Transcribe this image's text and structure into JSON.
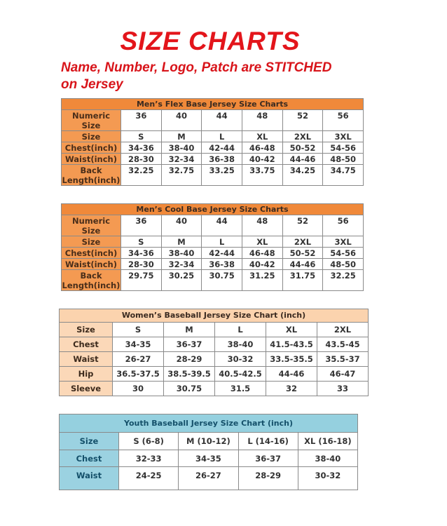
{
  "title": "SIZE CHARTS",
  "subtitle_line1": "Name, Number, Logo, Patch are STITCHED",
  "subtitle_line2": "on Jersey",
  "colors": {
    "title_red": "#e3151b",
    "men_header": "#f0893a",
    "women_header": "#fbd3ae",
    "youth_header": "#95d0df"
  },
  "tables": [
    {
      "caption": "Men’s Flex Base Jersey Size Charts",
      "rows": [
        [
          "Numeric Size",
          "36",
          "40",
          "44",
          "48",
          "52",
          "56"
        ],
        [
          "Size",
          "S",
          "M",
          "L",
          "XL",
          "2XL",
          "3XL"
        ],
        [
          "Chest(inch)",
          "34-36",
          "38-40",
          "42-44",
          "46-48",
          "50-52",
          "54-56"
        ],
        [
          "Waist(inch)",
          "28-30",
          "32-34",
          "36-38",
          "40-42",
          "44-46",
          "48-50"
        ],
        [
          "Back Length(inch)",
          "32.25",
          "32.75",
          "33.25",
          "33.75",
          "34.25",
          "34.75"
        ]
      ]
    },
    {
      "caption": "Men’s Cool Base Jersey Size Charts",
      "rows": [
        [
          "Numeric Size",
          "36",
          "40",
          "44",
          "48",
          "52",
          "56"
        ],
        [
          "Size",
          "S",
          "M",
          "L",
          "XL",
          "2XL",
          "3XL"
        ],
        [
          "Chest(inch)",
          "34-36",
          "38-40",
          "42-44",
          "46-48",
          "50-52",
          "54-56"
        ],
        [
          "Waist(inch)",
          "28-30",
          "32-34",
          "36-38",
          "40-42",
          "44-46",
          "48-50"
        ],
        [
          "Back Length(inch)",
          "29.75",
          "30.25",
          "30.75",
          "31.25",
          "31.75",
          "32.25"
        ]
      ]
    },
    {
      "caption": "Women’s Baseball Jersey Size Chart (inch)",
      "rows": [
        [
          "Size",
          "S",
          "M",
          "L",
          "XL",
          "2XL"
        ],
        [
          "Chest",
          "34-35",
          "36-37",
          "38-40",
          "41.5-43.5",
          "43.5-45"
        ],
        [
          "Waist",
          "26-27",
          "28-29",
          "30-32",
          "33.5-35.5",
          "35.5-37"
        ],
        [
          "Hip",
          "36.5-37.5",
          "38.5-39.5",
          "40.5-42.5",
          "44-46",
          "46-47"
        ],
        [
          "Sleeve",
          "30",
          "30.75",
          "31.5",
          "32",
          "33"
        ]
      ]
    },
    {
      "caption": "Youth Baseball Jersey Size Chart (inch)",
      "rows": [
        [
          "Size",
          "S (6-8)",
          "M (10-12)",
          "L (14-16)",
          "XL (16-18)"
        ],
        [
          "Chest",
          "32-33",
          "34-35",
          "36-37",
          "38-40"
        ],
        [
          "Waist",
          "24-25",
          "26-27",
          "28-29",
          "30-32"
        ]
      ]
    }
  ]
}
